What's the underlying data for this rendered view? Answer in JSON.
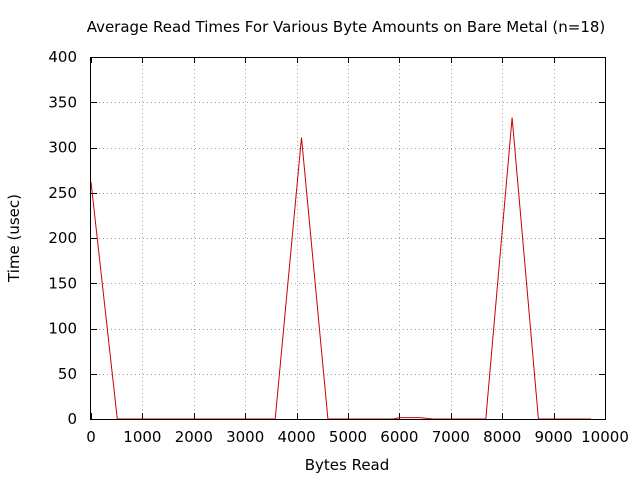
{
  "chart_data": {
    "type": "line",
    "title": "Average Read Times For Various Byte Amounts on Bare Metal (n=18)",
    "xlabel": "Bytes Read",
    "ylabel": "Time (usec)",
    "xlim": [
      0,
      10000
    ],
    "ylim": [
      0,
      400
    ],
    "xticks": [
      0,
      1000,
      2000,
      3000,
      4000,
      5000,
      6000,
      7000,
      8000,
      9000,
      10000
    ],
    "yticks": [
      0,
      50,
      100,
      150,
      200,
      250,
      300,
      350,
      400
    ],
    "grid": true,
    "legend": "none",
    "series": [
      {
        "color": "#cc0000",
        "x": [
          0,
          512,
          3584,
          4096,
          4608,
          5888,
          6000,
          6400,
          6656,
          7680,
          8192,
          8704,
          9728
        ],
        "y": [
          262,
          0,
          0,
          311,
          0,
          0,
          1.5,
          1.5,
          0,
          0,
          333,
          0,
          0
        ]
      }
    ]
  }
}
